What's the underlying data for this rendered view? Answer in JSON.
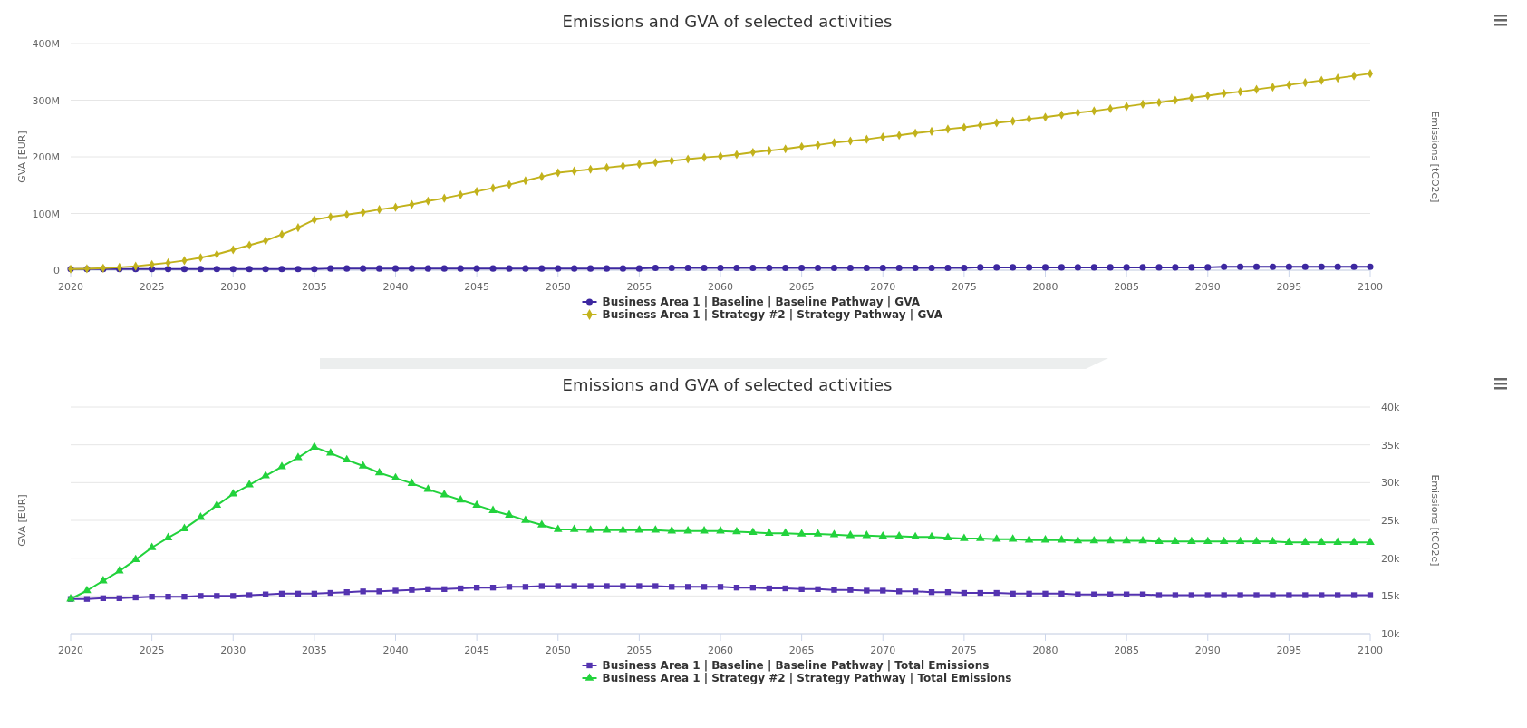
{
  "chart_data": [
    {
      "type": "line",
      "title": "Emissions and GVA of selected activities",
      "ylabel": "GVA [EUR]",
      "y2label": "Emissions [tCO2e]",
      "x": [
        2020,
        2021,
        2022,
        2023,
        2024,
        2025,
        2026,
        2027,
        2028,
        2029,
        2030,
        2031,
        2032,
        2033,
        2034,
        2035,
        2036,
        2037,
        2038,
        2039,
        2040,
        2041,
        2042,
        2043,
        2044,
        2045,
        2046,
        2047,
        2048,
        2049,
        2050,
        2051,
        2052,
        2053,
        2054,
        2055,
        2056,
        2057,
        2058,
        2059,
        2060,
        2061,
        2062,
        2063,
        2064,
        2065,
        2066,
        2067,
        2068,
        2069,
        2070,
        2071,
        2072,
        2073,
        2074,
        2075,
        2076,
        2077,
        2078,
        2079,
        2080,
        2081,
        2082,
        2083,
        2084,
        2085,
        2086,
        2087,
        2088,
        2089,
        2090,
        2091,
        2092,
        2093,
        2094,
        2095,
        2096,
        2097,
        2098,
        2099,
        2100
      ],
      "xlim": [
        2020,
        2100
      ],
      "xticks": [
        2020,
        2025,
        2030,
        2035,
        2040,
        2045,
        2050,
        2055,
        2060,
        2065,
        2070,
        2075,
        2080,
        2085,
        2090,
        2095,
        2100
      ],
      "ylim": [
        0,
        400000000
      ],
      "yticks": [
        0,
        {
          "value": 100000000,
          "label": "100M"
        },
        {
          "value": 200000000,
          "label": "200M"
        },
        {
          "value": 300000000,
          "label": "300M"
        },
        {
          "value": 400000000,
          "label": "400M"
        }
      ],
      "grid": "y",
      "legend": "bottom",
      "series": [
        {
          "name": "Business Area 1 | Baseline | Baseline Pathway | GVA",
          "color": "#3d28a0",
          "marker": "circle",
          "values": [
            2000000,
            2000000,
            2000000,
            2000000,
            2000000,
            2000000,
            2000000,
            2000000,
            2000000,
            2000000,
            2000000,
            2000000,
            2000000,
            2000000,
            2000000,
            2000000,
            3000000,
            3000000,
            3000000,
            3000000,
            3000000,
            3000000,
            3000000,
            3000000,
            3000000,
            3000000,
            3000000,
            3000000,
            3000000,
            3000000,
            3000000,
            3000000,
            3000000,
            3000000,
            3000000,
            3000000,
            4000000,
            4000000,
            4000000,
            4000000,
            4000000,
            4000000,
            4000000,
            4000000,
            4000000,
            4000000,
            4000000,
            4000000,
            4000000,
            4000000,
            4000000,
            4000000,
            4000000,
            4000000,
            4000000,
            4000000,
            5000000,
            5000000,
            5000000,
            5000000,
            5000000,
            5000000,
            5000000,
            5000000,
            5000000,
            5000000,
            5000000,
            5000000,
            5000000,
            5000000,
            5000000,
            6000000,
            6000000,
            6000000,
            6000000,
            6000000,
            6000000,
            6000000,
            6000000,
            6000000,
            6000000
          ]
        },
        {
          "name": "Business Area 1 | Strategy #2 | Strategy Pathway | GVA",
          "color": "#c2b21c",
          "marker": "diamond",
          "values": [
            2000000,
            2500000,
            3500000,
            5000000,
            7000000,
            10000000,
            13000000,
            17000000,
            22000000,
            28000000,
            36000000,
            44000000,
            52000000,
            63000000,
            75000000,
            89000000,
            94000000,
            98000000,
            102000000,
            107000000,
            111000000,
            116000000,
            122000000,
            127000000,
            133000000,
            139000000,
            145000000,
            151000000,
            158000000,
            165000000,
            172000000,
            175000000,
            178000000,
            181000000,
            184000000,
            187000000,
            190000000,
            193000000,
            196000000,
            199000000,
            201000000,
            204000000,
            208000000,
            211000000,
            214000000,
            218000000,
            221000000,
            225000000,
            228000000,
            231000000,
            235000000,
            238000000,
            242000000,
            245000000,
            249000000,
            252000000,
            256000000,
            260000000,
            263000000,
            267000000,
            270000000,
            274000000,
            278000000,
            281000000,
            285000000,
            289000000,
            293000000,
            296000000,
            300000000,
            304000000,
            308000000,
            312000000,
            315000000,
            319000000,
            323000000,
            327000000,
            331000000,
            335000000,
            339000000,
            343000000,
            347000000
          ]
        }
      ]
    },
    {
      "type": "line",
      "title": "Emissions and GVA of selected activities",
      "ylabel": "GVA [EUR]",
      "y2label": "Emissions [tCO2e]",
      "x": [
        2020,
        2021,
        2022,
        2023,
        2024,
        2025,
        2026,
        2027,
        2028,
        2029,
        2030,
        2031,
        2032,
        2033,
        2034,
        2035,
        2036,
        2037,
        2038,
        2039,
        2040,
        2041,
        2042,
        2043,
        2044,
        2045,
        2046,
        2047,
        2048,
        2049,
        2050,
        2051,
        2052,
        2053,
        2054,
        2055,
        2056,
        2057,
        2058,
        2059,
        2060,
        2061,
        2062,
        2063,
        2064,
        2065,
        2066,
        2067,
        2068,
        2069,
        2070,
        2071,
        2072,
        2073,
        2074,
        2075,
        2076,
        2077,
        2078,
        2079,
        2080,
        2081,
        2082,
        2083,
        2084,
        2085,
        2086,
        2087,
        2088,
        2089,
        2090,
        2091,
        2092,
        2093,
        2094,
        2095,
        2096,
        2097,
        2098,
        2099,
        2100
      ],
      "xlim": [
        2020,
        2100
      ],
      "xticks": [
        2020,
        2025,
        2030,
        2035,
        2040,
        2045,
        2050,
        2055,
        2060,
        2065,
        2070,
        2075,
        2080,
        2085,
        2090,
        2095,
        2100
      ],
      "y2lim": [
        10000,
        40000
      ],
      "y2ticks": [
        {
          "value": 10000,
          "label": "10k"
        },
        {
          "value": 15000,
          "label": "15k"
        },
        {
          "value": 20000,
          "label": "20k"
        },
        {
          "value": 25000,
          "label": "25k"
        },
        {
          "value": 30000,
          "label": "30k"
        },
        {
          "value": 35000,
          "label": "35k"
        },
        {
          "value": 40000,
          "label": "40k"
        }
      ],
      "grid": "y",
      "legend": "bottom",
      "series": [
        {
          "name": "Business Area 1 | Baseline | Baseline Pathway | Total Emissions",
          "color": "#5433b0",
          "marker": "square",
          "axis": "y2",
          "values": [
            14600,
            14600,
            14700,
            14700,
            14800,
            14900,
            14900,
            14900,
            15000,
            15000,
            15000,
            15100,
            15200,
            15300,
            15300,
            15300,
            15400,
            15500,
            15600,
            15600,
            15700,
            15800,
            15900,
            15900,
            16000,
            16100,
            16100,
            16200,
            16200,
            16300,
            16300,
            16300,
            16300,
            16300,
            16300,
            16300,
            16300,
            16200,
            16200,
            16200,
            16200,
            16100,
            16100,
            16000,
            16000,
            15900,
            15900,
            15800,
            15800,
            15700,
            15700,
            15600,
            15600,
            15500,
            15500,
            15400,
            15400,
            15400,
            15300,
            15300,
            15300,
            15300,
            15200,
            15200,
            15200,
            15200,
            15200,
            15100,
            15100,
            15100,
            15100,
            15100,
            15100,
            15100,
            15100,
            15100,
            15100,
            15100,
            15100,
            15100,
            15100
          ]
        },
        {
          "name": "Business Area 1 | Strategy #2 | Strategy Pathway | Total Emissions",
          "color": "#22d23c",
          "marker": "triangle",
          "axis": "y2",
          "values": [
            14600,
            15700,
            17000,
            18300,
            19800,
            21400,
            22700,
            23900,
            25400,
            27000,
            28500,
            29700,
            30900,
            32100,
            33300,
            34700,
            33900,
            33000,
            32200,
            31300,
            30600,
            29900,
            29100,
            28400,
            27700,
            27000,
            26300,
            25700,
            25000,
            24400,
            23800,
            23800,
            23700,
            23700,
            23700,
            23700,
            23700,
            23600,
            23600,
            23600,
            23600,
            23500,
            23400,
            23300,
            23300,
            23200,
            23200,
            23100,
            23000,
            23000,
            22900,
            22900,
            22800,
            22800,
            22700,
            22600,
            22600,
            22500,
            22500,
            22400,
            22400,
            22400,
            22300,
            22300,
            22300,
            22300,
            22300,
            22200,
            22200,
            22200,
            22200,
            22200,
            22200,
            22200,
            22200,
            22100,
            22100,
            22100,
            22100,
            22100,
            22100
          ]
        }
      ]
    }
  ]
}
